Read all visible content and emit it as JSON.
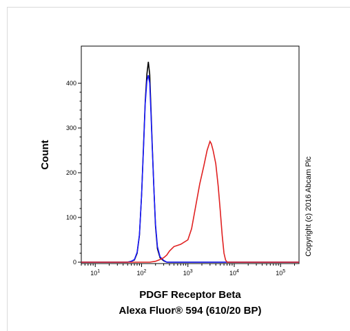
{
  "chart_data": {
    "type": "line",
    "x_scale": "log",
    "xlim": [
      5,
      250000
    ],
    "ylim": [
      0,
      470
    ],
    "xlabel_line1": "PDGF Receptor Beta",
    "xlabel_line2": "Alexa Fluor® 594 (610/20 BP)",
    "ylabel": "Count",
    "x_tick_exponents": [
      "1",
      "2",
      "3",
      "4",
      "5"
    ],
    "y_ticks": [
      0,
      100,
      200,
      300,
      400
    ],
    "grid": false,
    "legend": "none",
    "annotation": "Copyright (c) 2016 Abcam Plc",
    "series": [
      {
        "color": "#000000",
        "points": [
          [
            5,
            0
          ],
          [
            50,
            0
          ],
          [
            60,
            2
          ],
          [
            70,
            5
          ],
          [
            80,
            20
          ],
          [
            90,
            60
          ],
          [
            100,
            150
          ],
          [
            110,
            260
          ],
          [
            120,
            360
          ],
          [
            130,
            420
          ],
          [
            140,
            448
          ],
          [
            150,
            420
          ],
          [
            160,
            340
          ],
          [
            170,
            260
          ],
          [
            185,
            160
          ],
          [
            200,
            80
          ],
          [
            220,
            30
          ],
          [
            250,
            10
          ],
          [
            300,
            3
          ],
          [
            350,
            0
          ],
          [
            250000,
            0
          ]
        ]
      },
      {
        "color": "#1a1aff",
        "points": [
          [
            5,
            0
          ],
          [
            50,
            0
          ],
          [
            60,
            2
          ],
          [
            70,
            6
          ],
          [
            80,
            22
          ],
          [
            90,
            62
          ],
          [
            100,
            150
          ],
          [
            110,
            255
          ],
          [
            120,
            355
          ],
          [
            130,
            405
          ],
          [
            140,
            418
          ],
          [
            150,
            400
          ],
          [
            160,
            330
          ],
          [
            170,
            255
          ],
          [
            185,
            160
          ],
          [
            200,
            85
          ],
          [
            220,
            35
          ],
          [
            250,
            12
          ],
          [
            300,
            4
          ],
          [
            350,
            0
          ],
          [
            250000,
            0
          ]
        ]
      },
      {
        "color": "#e02020",
        "points": [
          [
            5,
            0
          ],
          [
            150,
            0
          ],
          [
            200,
            2
          ],
          [
            250,
            6
          ],
          [
            300,
            10
          ],
          [
            350,
            16
          ],
          [
            400,
            25
          ],
          [
            500,
            35
          ],
          [
            700,
            40
          ],
          [
            1000,
            50
          ],
          [
            1200,
            75
          ],
          [
            1500,
            130
          ],
          [
            1800,
            175
          ],
          [
            2200,
            215
          ],
          [
            2600,
            250
          ],
          [
            3000,
            270
          ],
          [
            3200,
            265
          ],
          [
            3500,
            250
          ],
          [
            4000,
            220
          ],
          [
            4500,
            170
          ],
          [
            5000,
            115
          ],
          [
            5500,
            60
          ],
          [
            6000,
            20
          ],
          [
            6500,
            5
          ],
          [
            7000,
            0
          ],
          [
            250000,
            0
          ]
        ]
      }
    ]
  }
}
